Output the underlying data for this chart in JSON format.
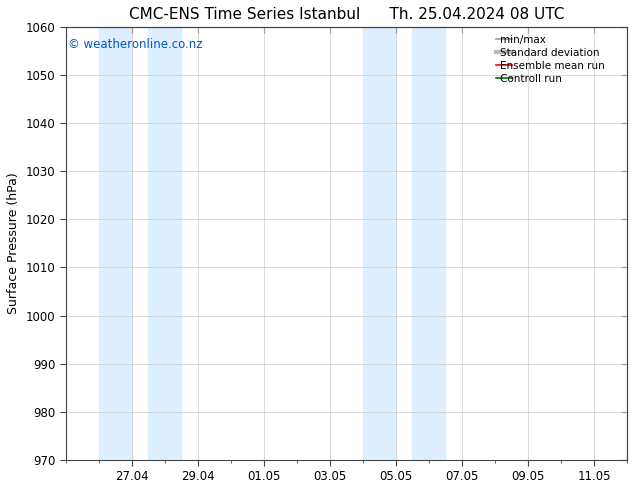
{
  "title_left": "CMC-ENS Time Series Istanbul",
  "title_right": "Th. 25.04.2024 08 UTC",
  "ylabel": "Surface Pressure (hPa)",
  "ylim": [
    970,
    1060
  ],
  "ytick_interval": 10,
  "x_tick_labels": [
    "27.04",
    "29.04",
    "01.05",
    "03.05",
    "05.05",
    "07.05",
    "09.05",
    "11.05"
  ],
  "x_tick_positions": [
    2,
    4,
    6,
    8,
    10,
    12,
    14,
    16
  ],
  "xlim": [
    0,
    17
  ],
  "watermark": "© weatheronline.co.nz",
  "watermark_color": "#0055cc",
  "background_color": "#ffffff",
  "plot_bg_color": "#ffffff",
  "shaded_color": "#ddeeff",
  "shaded_regions": [
    {
      "x_start": 1.0,
      "x_end": 2.0
    },
    {
      "x_start": 2.5,
      "x_end": 3.5
    },
    {
      "x_start": 9.0,
      "x_end": 10.0
    },
    {
      "x_start": 10.5,
      "x_end": 11.5
    }
  ],
  "legend_items": [
    {
      "label": "min/max",
      "color": "#999999",
      "linewidth": 1.2
    },
    {
      "label": "Standard deviation",
      "color": "#bbbbbb",
      "linewidth": 3
    },
    {
      "label": "Ensemble mean run",
      "color": "#ff0000",
      "linewidth": 1.2
    },
    {
      "label": "Controll run",
      "color": "#007700",
      "linewidth": 1.2
    }
  ],
  "title_fontsize": 11,
  "axis_label_fontsize": 9,
  "tick_label_fontsize": 8.5,
  "legend_fontsize": 7.5,
  "spine_color": "#444444",
  "grid_color": "#cccccc",
  "grid_linewidth": 0.5
}
